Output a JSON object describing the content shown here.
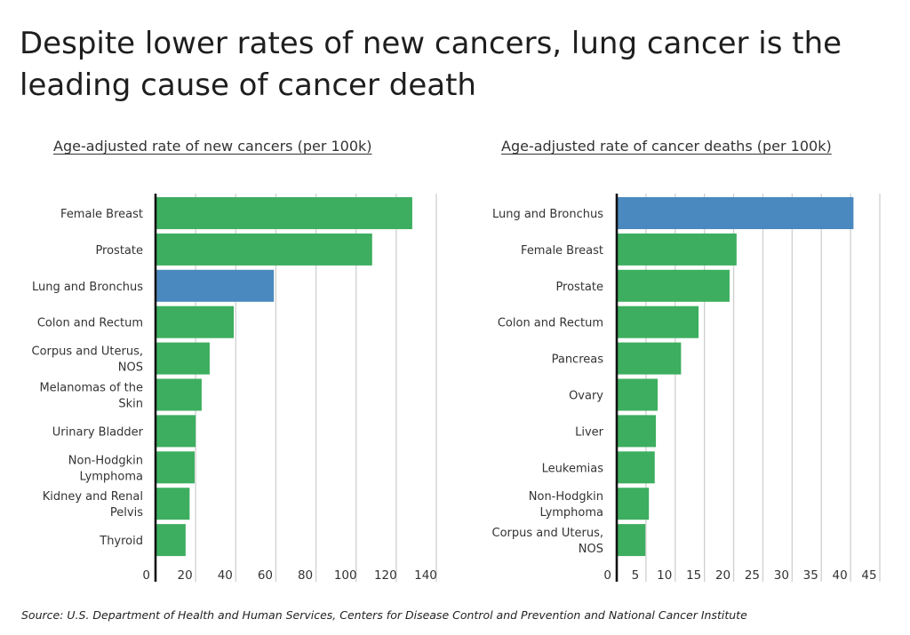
{
  "title": "Despite lower rates of new cancers, lung cancer is the leading cause of cancer death",
  "source": "Source:  U.S. Department of Health and Human Services, Centers for Disease Control and Prevention and National Cancer Institute",
  "colors": {
    "default_bar": "#3dae5f",
    "highlight_bar": "#4a89bf",
    "grid": "#cfcfcf",
    "axis": "#111111"
  },
  "chart_data": [
    {
      "type": "bar",
      "orientation": "horizontal",
      "title": "Age-adjusted rate of new cancers (per 100k)",
      "categories": [
        "Female Breast",
        "Prostate",
        "Lung and Bronchus",
        "Colon and Rectum",
        "Corpus and Uterus, NOS",
        "Melanomas of the Skin",
        "Urinary Bladder",
        "Non-Hodgkin Lymphoma",
        "Kidney and Renal Pelvis",
        "Thyroid"
      ],
      "category_lines": [
        [
          "Female Breast"
        ],
        [
          "Prostate"
        ],
        [
          "Lung and Bronchus"
        ],
        [
          "Colon and Rectum"
        ],
        [
          "Corpus and Uterus,",
          "NOS"
        ],
        [
          "Melanomas of the",
          "Skin"
        ],
        [
          "Urinary Bladder"
        ],
        [
          "Non-Hodgkin",
          "Lymphoma"
        ],
        [
          "Kidney and Renal",
          "Pelvis"
        ],
        [
          "Thyroid"
        ]
      ],
      "values": [
        128,
        108,
        59,
        39,
        27,
        23,
        20,
        19.5,
        17,
        15
      ],
      "highlight": "Lung and Bronchus",
      "xlim": [
        0,
        140
      ],
      "xticks": [
        0,
        20,
        40,
        60,
        80,
        100,
        120,
        140
      ],
      "xlabel": "",
      "ylabel": "",
      "grid": true
    },
    {
      "type": "bar",
      "orientation": "horizontal",
      "title": "Age-adjusted rate of cancer deaths (per 100k)",
      "categories": [
        "Lung and Bronchus",
        "Female Breast",
        "Prostate",
        "Colon and Rectum",
        "Pancreas",
        "Ovary",
        "Liver",
        "Leukemias",
        "Non-Hodgkin Lymphoma",
        "Corpus and Uterus, NOS"
      ],
      "category_lines": [
        [
          "Lung and Bronchus"
        ],
        [
          "Female Breast"
        ],
        [
          "Prostate"
        ],
        [
          "Colon and Rectum"
        ],
        [
          "Pancreas"
        ],
        [
          "Ovary"
        ],
        [
          "Liver"
        ],
        [
          "Leukemias"
        ],
        [
          "Non-Hodgkin",
          "Lymphoma"
        ],
        [
          "Corpus and Uterus,",
          "NOS"
        ]
      ],
      "values": [
        40.5,
        20.5,
        19.3,
        14,
        11,
        7,
        6.7,
        6.5,
        5.5,
        4.9
      ],
      "highlight": "Lung and Bronchus",
      "xlim": [
        0,
        45
      ],
      "xticks": [
        0,
        5,
        10,
        15,
        20,
        25,
        30,
        35,
        40,
        45
      ],
      "xlabel": "",
      "ylabel": "",
      "grid": true
    }
  ]
}
